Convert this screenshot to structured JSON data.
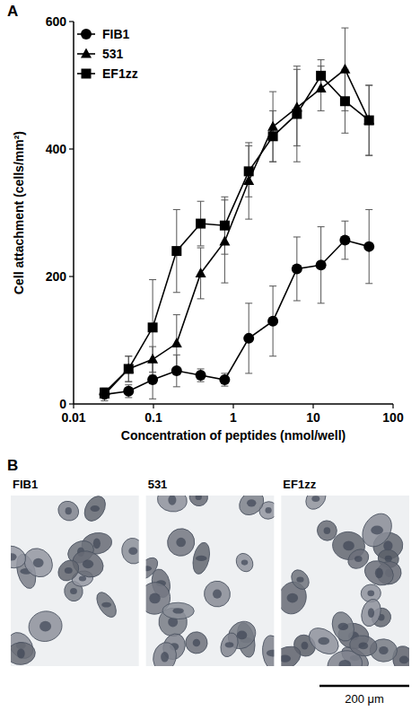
{
  "chart_data": {
    "type": "line",
    "panel": "A",
    "x_label": "Concentration of peptides (nmol/well)",
    "y_label": "Cell attachment (cells/mm²)",
    "log": "x",
    "xlim": [
      0.01,
      100
    ],
    "xticks": [
      0.01,
      0.1,
      1,
      10,
      100
    ],
    "ylim": [
      0,
      600
    ],
    "yticks": [
      0,
      200,
      400,
      600
    ],
    "grid": false,
    "legend": "upper left",
    "x": [
      0.0244,
      0.0488,
      0.0977,
      0.195,
      0.39,
      0.78,
      1.56,
      3.13,
      6.25,
      12.5,
      25,
      50
    ],
    "series": [
      {
        "name": "FIB1",
        "color": "#000000",
        "marker": "circle",
        "values": [
          15,
          20,
          38,
          52,
          45,
          38,
          103,
          130,
          212,
          218,
          257,
          247
        ],
        "errors": [
          10,
          10,
          30,
          25,
          10,
          10,
          55,
          55,
          50,
          60,
          30,
          58
        ]
      },
      {
        "name": "531",
        "color": "#000000",
        "marker": "triangle",
        "values": [
          15,
          55,
          70,
          95,
          205,
          255,
          350,
          435,
          465,
          495,
          525,
          445
        ],
        "errors": [
          5,
          20,
          20,
          45,
          40,
          65,
          60,
          55,
          60,
          35,
          65,
          55
        ]
      },
      {
        "name": "EF1zz",
        "color": "#000000",
        "marker": "square",
        "values": [
          18,
          55,
          120,
          240,
          283,
          280,
          365,
          420,
          455,
          515,
          475,
          445
        ],
        "errors": [
          5,
          20,
          75,
          65,
          35,
          45,
          40,
          40,
          75,
          25,
          50,
          55
        ]
      }
    ]
  },
  "panel_b": {
    "panel": "B",
    "images": [
      {
        "label": "FIB1"
      },
      {
        "label": "531"
      },
      {
        "label": "EF1zz"
      }
    ],
    "scale_bar_label": "200 μm"
  }
}
